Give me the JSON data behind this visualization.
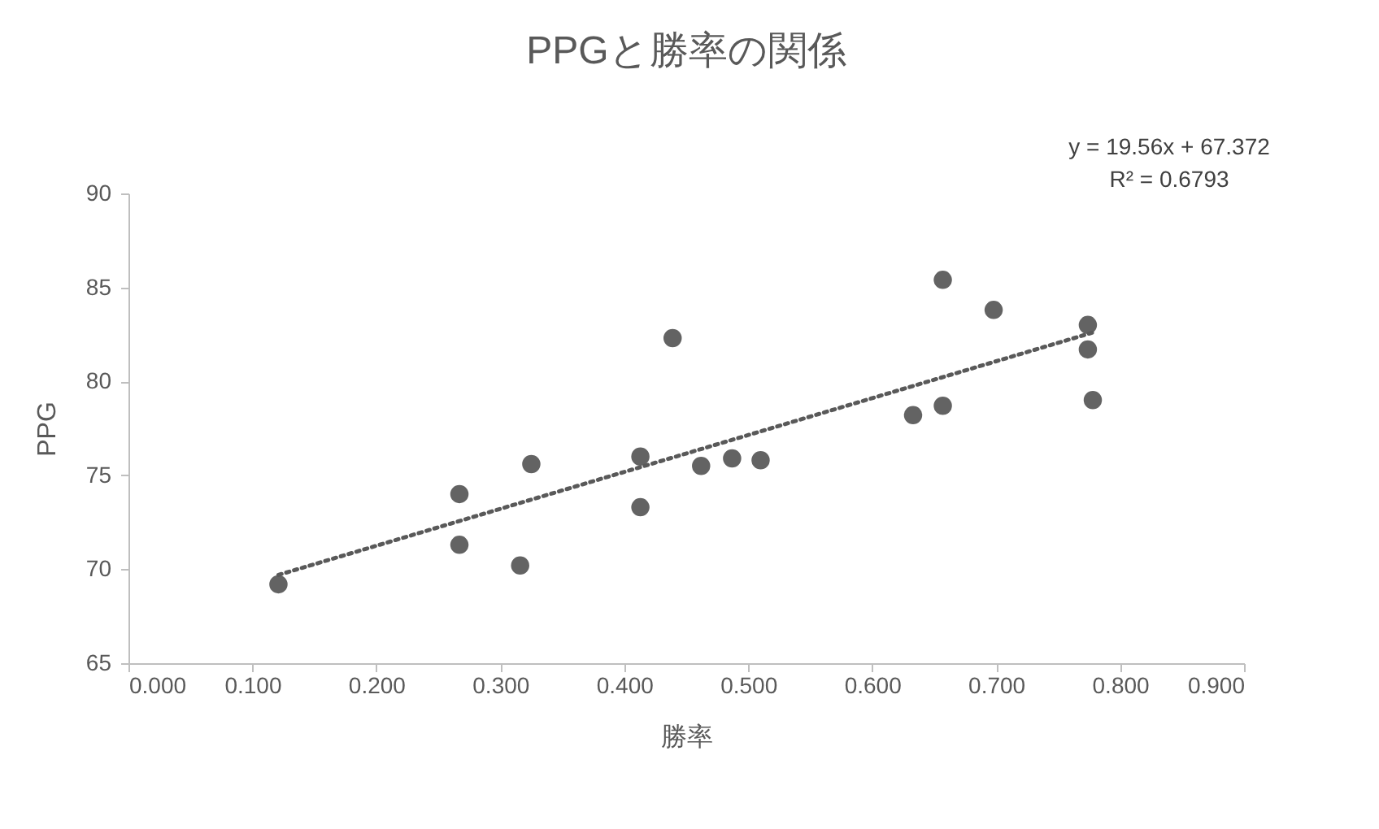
{
  "chart_data": {
    "type": "scatter",
    "title": "PPGと勝率の関係",
    "xlabel": "勝率",
    "ylabel": "PPG",
    "xlim": [
      0,
      0.9
    ],
    "xticks": [
      {
        "value": 0,
        "label": "0.000"
      },
      {
        "value": 0.1,
        "label": "0.100"
      },
      {
        "value": 0.2,
        "label": "0.200"
      },
      {
        "value": 0.3,
        "label": "0.300"
      },
      {
        "value": 0.4,
        "label": "0.400"
      },
      {
        "value": 0.5,
        "label": "0.500"
      },
      {
        "value": 0.6,
        "label": "0.600"
      },
      {
        "value": 0.7,
        "label": "0.700"
      },
      {
        "value": 0.8,
        "label": "0.800"
      },
      {
        "value": 0.9,
        "label": "0.900"
      }
    ],
    "ylim": [
      65,
      90
    ],
    "yticks": [
      65,
      70,
      75,
      80,
      85,
      90
    ],
    "grid": false,
    "series": [
      {
        "color": "#636363",
        "marker": "circle",
        "x": [
          0.121,
          0.267,
          0.267,
          0.316,
          0.325,
          0.413,
          0.413,
          0.439,
          0.462,
          0.487,
          0.51,
          0.633,
          0.657,
          0.657,
          0.698,
          0.774,
          0.774,
          0.778
        ],
        "values": [
          69.2,
          74.0,
          71.3,
          70.2,
          75.6,
          76.0,
          73.3,
          82.3,
          75.5,
          75.9,
          75.8,
          78.2,
          78.7,
          85.4,
          83.8,
          83.0,
          81.7,
          79.0
        ]
      },
      {
        "type": "line",
        "color": "#595959",
        "line_style": "dotted",
        "marker": "none",
        "x": [
          0.121,
          0.778
        ],
        "values": [
          69.7,
          82.6
        ]
      }
    ],
    "annotations": [
      "y = 19.56x + 67.372",
      "R² = 0.6793"
    ]
  }
}
